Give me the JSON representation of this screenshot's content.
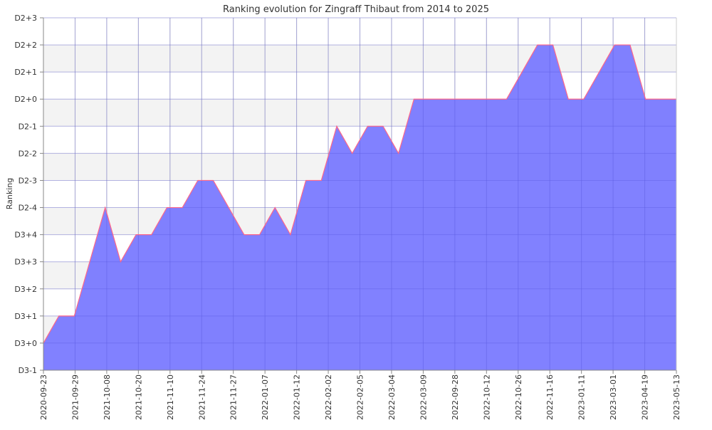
{
  "chart_data": {
    "type": "area",
    "title": "Ranking evolution for Zingraff Thibaut from 2014 to 2025",
    "xlabel": "",
    "ylabel": "Ranking",
    "y_ticks": [
      "D3-1",
      "D3+0",
      "D3+1",
      "D3+2",
      "D3+3",
      "D3+4",
      "D2-4",
      "D2-3",
      "D2-2",
      "D2-1",
      "D2+0",
      "D2+1",
      "D2+2",
      "D2+3"
    ],
    "x_ticks": [
      "2020-09-23",
      "2021-09-29",
      "2021-10-08",
      "2021-10-20",
      "2021-11-10",
      "2021-11-24",
      "2021-11-27",
      "2022-01-07",
      "2022-01-12",
      "2022-02-02",
      "2022-02-05",
      "2022-03-04",
      "2022-03-09",
      "2022-09-28",
      "2022-10-12",
      "2022-10-26",
      "2022-11-16",
      "2023-01-11",
      "2023-03-01",
      "2023-04-19",
      "2023-05-13"
    ],
    "series": [
      {
        "values": [
          "D3+0",
          "D3+1",
          "D3+1",
          "D3+3",
          "D2-4",
          "D3+3",
          "D3+4",
          "D3+4",
          "D2-4",
          "D2-4",
          "D2-3",
          "D2-3",
          "D2-4",
          "D3+4",
          "D3+4",
          "D2-4",
          "D3+4",
          "D2-3",
          "D2-3",
          "D2-1",
          "D2-2",
          "D2-1",
          "D2-1",
          "D2-2",
          "D2+0",
          "D2+0",
          "D2+0",
          "D2+0",
          "D2+0",
          "D2+0",
          "D2+0",
          "D2+1",
          "D2+2",
          "D2+2",
          "D2+0",
          "D2+0",
          "D2+1",
          "D2+2",
          "D2+2",
          "D2+0",
          "D2+0",
          "D2+0"
        ]
      }
    ],
    "colors": {
      "fill": "#7070ff",
      "stroke": "#ff6688",
      "band": "#f3f3f3",
      "grid": "#cccccc",
      "axis": "#888888",
      "text": "#333333"
    }
  }
}
